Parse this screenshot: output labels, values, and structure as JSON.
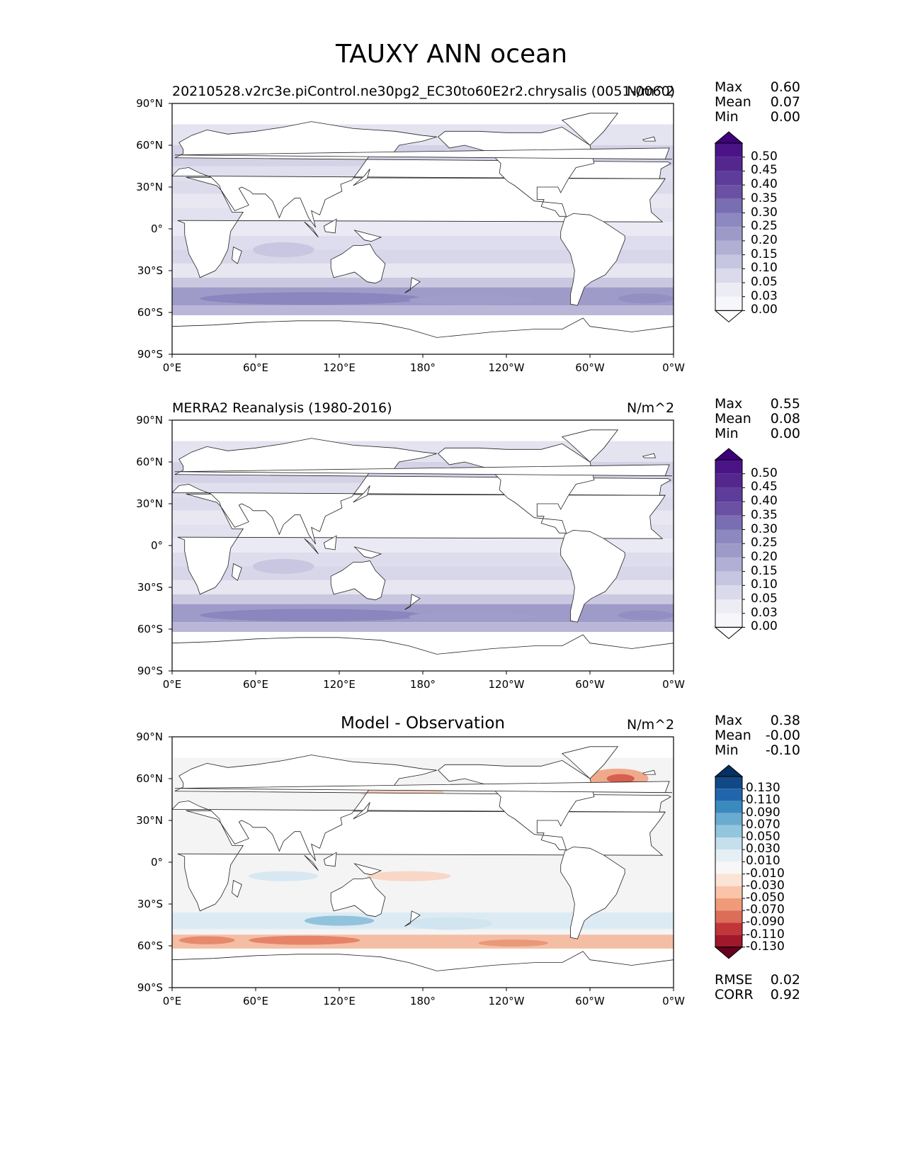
{
  "title": "TAUXY ANN ocean",
  "panels": [
    {
      "id": "model",
      "title_left": "20210528.v2rc3e.piControl.ne30pg2_EC30to60E2r2.chrysalis (0051-0060)",
      "title_center": "",
      "units": "N/m^2",
      "stats": [
        {
          "label": "Max",
          "value": "0.60"
        },
        {
          "label": "Mean",
          "value": "0.07"
        },
        {
          "label": "Min",
          "value": "0.00"
        }
      ],
      "colorbar": {
        "labels": [
          "0.50",
          "0.45",
          "0.40",
          "0.35",
          "0.30",
          "0.25",
          "0.20",
          "0.15",
          "0.10",
          "0.05",
          "0.03",
          "0.00"
        ],
        "colors": [
          "#3f007d",
          "#4a1486",
          "#54278f",
          "#5e3c99",
          "#6a51a3",
          "#796eb2",
          "#8d89c0",
          "#9e9ac8",
          "#b1afd4",
          "#c6c6e1",
          "#dadaeb",
          "#ececf4",
          "#f7f6fb",
          "#ffffff"
        ]
      }
    },
    {
      "id": "obs",
      "title_left": "MERRA2 Reanalysis (1980-2016)",
      "title_center": "",
      "units": "N/m^2",
      "stats": [
        {
          "label": "Max",
          "value": "0.55"
        },
        {
          "label": "Mean",
          "value": "0.08"
        },
        {
          "label": "Min",
          "value": "0.00"
        }
      ],
      "colorbar": {
        "labels": [
          "0.50",
          "0.45",
          "0.40",
          "0.35",
          "0.30",
          "0.25",
          "0.20",
          "0.15",
          "0.10",
          "0.05",
          "0.03",
          "0.00"
        ],
        "colors": [
          "#3f007d",
          "#4a1486",
          "#54278f",
          "#5e3c99",
          "#6a51a3",
          "#796eb2",
          "#8d89c0",
          "#9e9ac8",
          "#b1afd4",
          "#c6c6e1",
          "#dadaeb",
          "#ececf4",
          "#f7f6fb",
          "#ffffff"
        ]
      }
    },
    {
      "id": "diff",
      "title_left": "",
      "title_center": "Model - Observation",
      "units": "N/m^2",
      "stats": [
        {
          "label": "Max",
          "value": "0.38"
        },
        {
          "label": "Mean",
          "value": "-0.00"
        },
        {
          "label": "Min",
          "value": "-0.10"
        }
      ],
      "extra_stats": [
        {
          "label": "RMSE",
          "value": "0.02"
        },
        {
          "label": "CORR",
          "value": "0.92"
        }
      ],
      "colorbar": {
        "labels": [
          "0.130",
          "0.110",
          "0.090",
          "0.070",
          "0.050",
          "0.030",
          "0.010",
          "-0.010",
          "-0.030",
          "-0.050",
          "-0.070",
          "-0.090",
          "-0.110",
          "-0.130"
        ],
        "colors": [
          "#053061",
          "#124984",
          "#2166ac",
          "#3a8abf",
          "#6aacd0",
          "#93c6de",
          "#c5dfec",
          "#e6eff4",
          "#f7f7f7",
          "#fbe3d6",
          "#f9c4a9",
          "#ef9b7a",
          "#dc6e57",
          "#c13639",
          "#a0182b",
          "#67001f"
        ]
      }
    }
  ],
  "axes": {
    "yticks": [
      "90°N",
      "60°N",
      "30°N",
      "0°",
      "30°S",
      "60°S",
      "90°S"
    ],
    "xticks": [
      "0°E",
      "60°E",
      "120°E",
      "180°",
      "120°W",
      "60°W",
      "0°W"
    ]
  }
}
